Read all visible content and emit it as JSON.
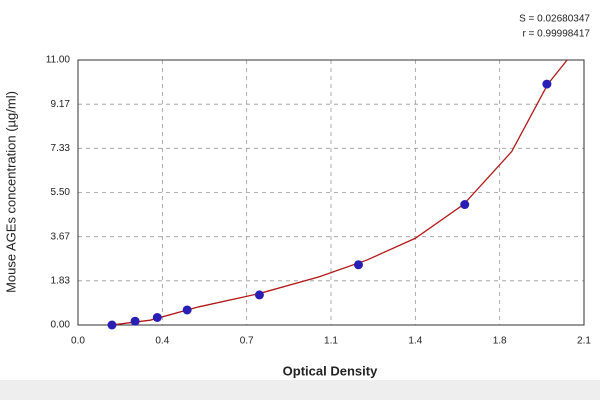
{
  "chart_data": {
    "type": "scatter",
    "xlabel": "Optical Density",
    "ylabel": "Mouse AGEs concentration (µg/ml)",
    "annotations": [
      "S = 0.02680347",
      "r = 0.99998417"
    ],
    "xlim": [
      0,
      2.1
    ],
    "xticks": [
      {
        "value": 0,
        "label": "0.0"
      },
      {
        "value": 0.35,
        "label": "0.4"
      },
      {
        "value": 0.7,
        "label": "0.7"
      },
      {
        "value": 1.05,
        "label": "1.1"
      },
      {
        "value": 1.4,
        "label": "1.4"
      },
      {
        "value": 1.75,
        "label": "1.8"
      },
      {
        "value": 2.1,
        "label": "2.1"
      }
    ],
    "ylim": [
      0,
      11
    ],
    "yticks": [
      {
        "value": 0,
        "label": "0.00"
      },
      {
        "value": 1.8333,
        "label": "1.83"
      },
      {
        "value": 3.6667,
        "label": "3.67"
      },
      {
        "value": 5.5,
        "label": "5.50"
      },
      {
        "value": 7.3333,
        "label": "7.33"
      },
      {
        "value": 9.1667,
        "label": "9.17"
      },
      {
        "value": 11,
        "label": "11.00"
      }
    ],
    "grid": true,
    "series": [
      {
        "mode": "markers",
        "color": "#2a1fb5",
        "x": [
          0.141,
          0.237,
          0.329,
          0.453,
          0.753,
          1.164,
          1.605,
          1.946
        ],
        "values": [
          0,
          0.156,
          0.312,
          0.625,
          1.25,
          2.5,
          5,
          10
        ]
      },
      {
        "mode": "line",
        "color": "#b01818",
        "x": [
          0.14,
          0.3,
          0.5,
          0.75,
          1.0,
          1.2,
          1.4,
          1.6,
          1.8,
          1.95,
          2.03
        ],
        "values": [
          0,
          0.2,
          0.75,
          1.3,
          2.0,
          2.7,
          3.6,
          5.0,
          7.2,
          10.0,
          11
        ]
      }
    ]
  }
}
